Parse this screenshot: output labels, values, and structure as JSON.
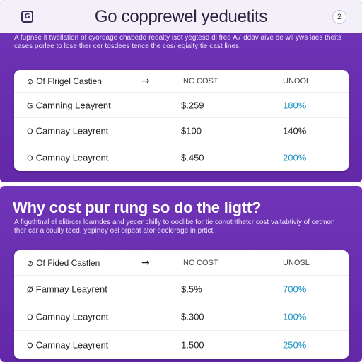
{
  "header": {
    "logo_glyph": "G",
    "title": "Go copprewel yeduetits",
    "help_label": "2"
  },
  "top_section": {
    "intro": "A fupnse it twellation of cyordage chabedd reealty isot yegtesd dl free A7 ddav aive be wil yws laes theits cases porlee to lose ther cer tosdees tence the cos/ egialty tie cast lines.",
    "table": {
      "columns": {
        "name": "Of Flrigel Castien",
        "arrow": "→",
        "cost": "INC COST",
        "pct": "UNOOL"
      },
      "rows": [
        {
          "marker": "G",
          "name": "Camning Leayrent",
          "cost": "$.259",
          "pct": "180%",
          "pct_color": "teal"
        },
        {
          "marker": "O",
          "name": "Camnay Leayrent",
          "cost": "$100",
          "pct": "140%",
          "pct_color": "dark"
        },
        {
          "marker": "O",
          "name": "Camnay Leayrent",
          "cost": "$.450",
          "pct": "200%",
          "pct_color": "teal"
        }
      ]
    }
  },
  "bottom_section": {
    "heading": "Why cost pur rung so do the ligtt?",
    "intro": "A figuthtnal el elitircer loarndes and yecer chilly to ooclibe for tie conotrithetcr cost valtabtiviy of cetmon ther car a coully teed, yepiney osl orpeat ator eeclerage in prtict.",
    "table": {
      "columns": {
        "name": "Of Fided Castlen",
        "arrow": "→",
        "cost": "INC COST",
        "pct": "UNOSL"
      },
      "rows": [
        {
          "marker": "Ø",
          "name": "Famnay Leayrent",
          "cost": "$.5%",
          "pct": "700%",
          "pct_color": "teal"
        },
        {
          "marker": "O",
          "name": "Camnay Leayrent",
          "cost": "$.300",
          "pct": "100%",
          "pct_color": "teal"
        },
        {
          "marker": "O",
          "name": "Camnay Leayrent",
          "cost": "1.500",
          "pct": "250%",
          "pct_color": "teal"
        }
      ]
    }
  },
  "colors": {
    "panel": "#6a2fb0",
    "teal": "#1e95c4",
    "header_bg": "#f4f0fa"
  }
}
